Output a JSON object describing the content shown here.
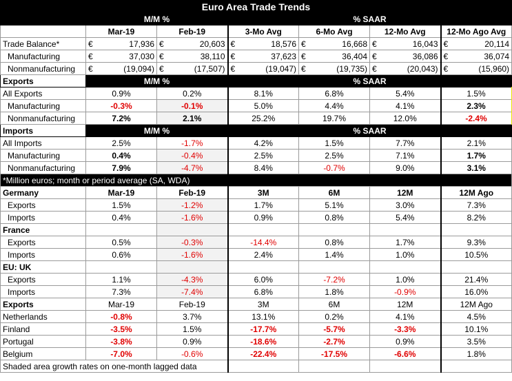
{
  "title": "Euro Area Trade Trends",
  "header1": {
    "mm": "M/M %",
    "saar": "% SAAR"
  },
  "header2": [
    "Mar-19",
    "Feb-19",
    "3-Mo Avg",
    "6-Mo Avg",
    "12-Mo Avg",
    "12-Mo Ago Avg"
  ],
  "currency": "€",
  "balance": [
    {
      "label": "Trade Balance*",
      "v": [
        "17,936",
        "20,603",
        "18,576",
        "16,668",
        "16,043",
        "20,114"
      ]
    },
    {
      "label": "Manufacturing",
      "v": [
        "37,030",
        "38,110",
        "37,623",
        "36,404",
        "36,086",
        "36,074"
      ]
    },
    {
      "label": "Nonmanufacturing",
      "v": [
        "(19,094)",
        "(17,507)",
        "(19,047)",
        "(19,735)",
        "(20,043)",
        "(15,960)"
      ]
    }
  ],
  "exports": {
    "label": "Exports",
    "mm": "M/M %",
    "saar": "% SAAR",
    "rows": [
      {
        "label": "All Exports",
        "v": [
          "0.9%",
          "0.2%",
          "8.1%",
          "6.8%",
          "5.4%",
          "1.5%"
        ]
      },
      {
        "label": "Manufacturing",
        "v": [
          "-0.3%",
          "-0.1%",
          "5.0%",
          "4.4%",
          "4.1%",
          "2.3%"
        ]
      },
      {
        "label": "Nonmanufacturing",
        "v": [
          "7.2%",
          "2.1%",
          "25.2%",
          "19.7%",
          "12.0%",
          "-2.4%"
        ]
      }
    ]
  },
  "imports": {
    "label": "Imports",
    "mm": "M/M %",
    "saar": "% SAAR",
    "rows": [
      {
        "label": "All Imports",
        "v": [
          "2.5%",
          "-1.7%",
          "4.2%",
          "1.5%",
          "7.7%",
          "2.1%"
        ]
      },
      {
        "label": "Manufacturing",
        "v": [
          "0.4%",
          "-0.4%",
          "2.5%",
          "2.5%",
          "7.1%",
          "1.7%"
        ]
      },
      {
        "label": "Nonmanufacturing",
        "v": [
          "7.9%",
          "-4.7%",
          "8.4%",
          "-0.7%",
          "9.0%",
          "3.1%"
        ]
      }
    ]
  },
  "footnote": "*Million euros; month or period average (SA, WDA)",
  "countries": {
    "header": [
      "Mar-19",
      "Feb-19",
      "3M",
      "6M",
      "12M",
      "12M Ago"
    ],
    "blocks": [
      {
        "label": "Germany",
        "rows": [
          {
            "label": "Exports",
            "v": [
              "1.5%",
              "-1.2%",
              "1.7%",
              "5.1%",
              "3.0%",
              "7.3%"
            ]
          },
          {
            "label": "Imports",
            "v": [
              "0.4%",
              "-1.6%",
              "0.9%",
              "0.8%",
              "5.4%",
              "8.2%"
            ]
          }
        ]
      },
      {
        "label": "France",
        "rows": [
          {
            "label": "Exports",
            "v": [
              "0.5%",
              "-0.3%",
              "-14.4%",
              "0.8%",
              "1.7%",
              "9.3%"
            ]
          },
          {
            "label": "Imports",
            "v": [
              "0.6%",
              "-1.6%",
              "2.4%",
              "1.4%",
              "1.0%",
              "10.5%"
            ]
          }
        ]
      },
      {
        "label": "EU: UK",
        "rows": [
          {
            "label": "Exports",
            "v": [
              "1.1%",
              "-4.3%",
              "6.0%",
              "-7.2%",
              "1.0%",
              "21.4%"
            ]
          },
          {
            "label": "Imports",
            "v": [
              "7.3%",
              "-7.4%",
              "6.8%",
              "1.8%",
              "-0.9%",
              "16.0%"
            ]
          }
        ]
      }
    ]
  },
  "exp_by_country": {
    "label": "Exports",
    "header": [
      "Mar-19",
      "Feb-19",
      "3M",
      "6M",
      "12M",
      "12M Ago"
    ],
    "rows": [
      {
        "label": "Netherlands",
        "v": [
          "-0.8%",
          "3.7%",
          "13.1%",
          "0.2%",
          "4.1%",
          "4.5%"
        ]
      },
      {
        "label": "Finland",
        "v": [
          "-3.5%",
          "1.5%",
          "-17.7%",
          "-5.7%",
          "-3.3%",
          "10.1%"
        ]
      },
      {
        "label": "Portugal",
        "v": [
          "-3.8%",
          "0.9%",
          "-18.6%",
          "-2.7%",
          "0.9%",
          "3.5%"
        ]
      },
      {
        "label": "Belgium",
        "v": [
          "-7.0%",
          "-0.6%",
          "-22.4%",
          "-17.5%",
          "-6.6%",
          "1.8%"
        ]
      }
    ]
  },
  "bottom_note": "Shaded area growth rates on one-month lagged data"
}
